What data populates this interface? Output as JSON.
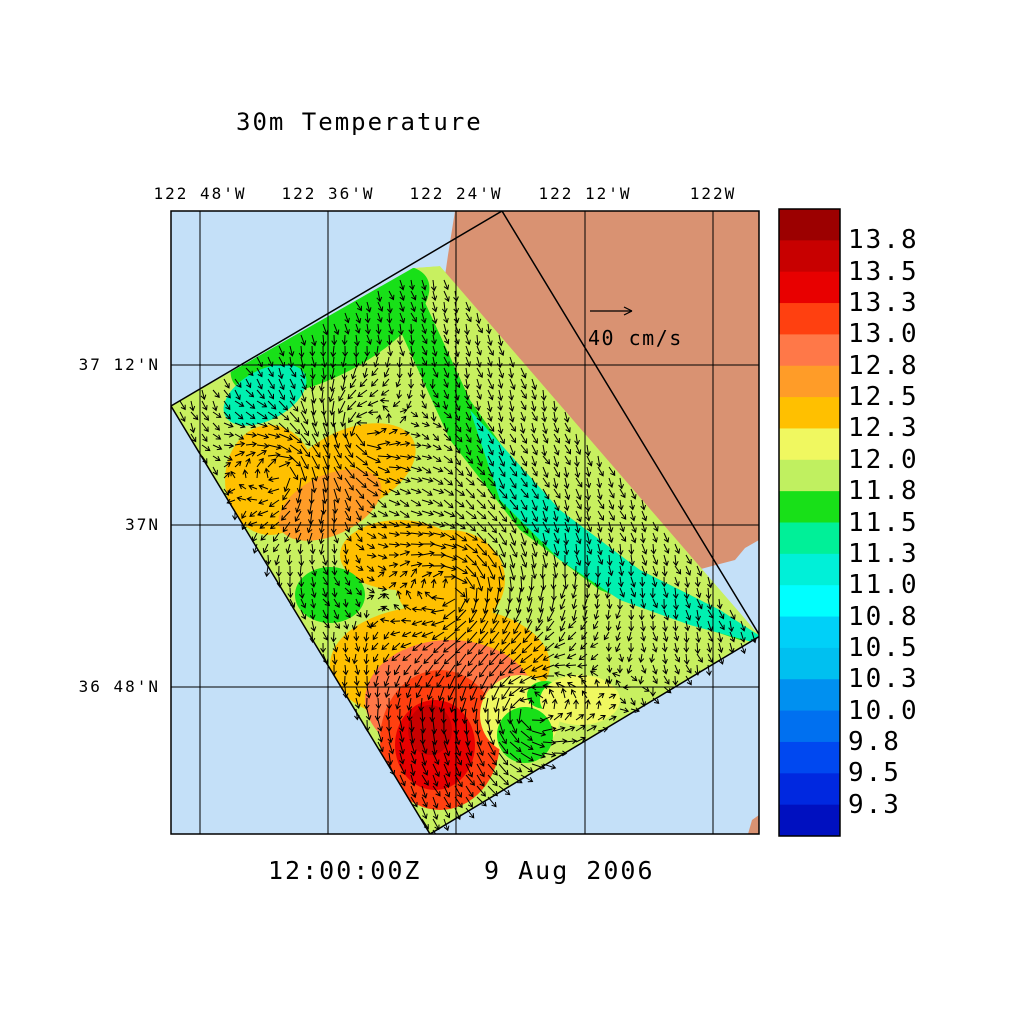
{
  "title": "30m Temperature",
  "footer": {
    "time": "12:00:00Z",
    "date": "9 Aug 2006"
  },
  "map": {
    "lon_labels": [
      "122 48'W",
      "122 36'W",
      "122 24'W",
      "122 12'W",
      "122W"
    ],
    "lat_labels": [
      "37 12'N",
      "37N",
      "36 48'N"
    ],
    "ocean_color": "#c4e0f8",
    "land_color": "#d99272",
    "vector_reference": {
      "label": "40 cm/s",
      "speed_cm_s": 40
    }
  },
  "colorbar": {
    "labels": [
      "13.8",
      "13.5",
      "13.3",
      "13.0",
      "12.8",
      "12.5",
      "12.3",
      "12.0",
      "11.8",
      "11.5",
      "11.3",
      "11.0",
      "10.8",
      "10.5",
      "10.3",
      "10.0",
      "9.8",
      "9.5",
      "9.3"
    ],
    "colors": [
      "#9c0000",
      "#c80000",
      "#e80000",
      "#ff4010",
      "#ff7848",
      "#ff9c28",
      "#ffc000",
      "#f0f860",
      "#c0f060",
      "#18e018",
      "#00f098",
      "#00f0d8",
      "#00ffff",
      "#00d0f8",
      "#00c0f0",
      "#0090f0",
      "#0070f0",
      "#0048f0",
      "#0028e0",
      "#0010c0"
    ],
    "range": [
      9.3,
      13.8
    ]
  }
}
